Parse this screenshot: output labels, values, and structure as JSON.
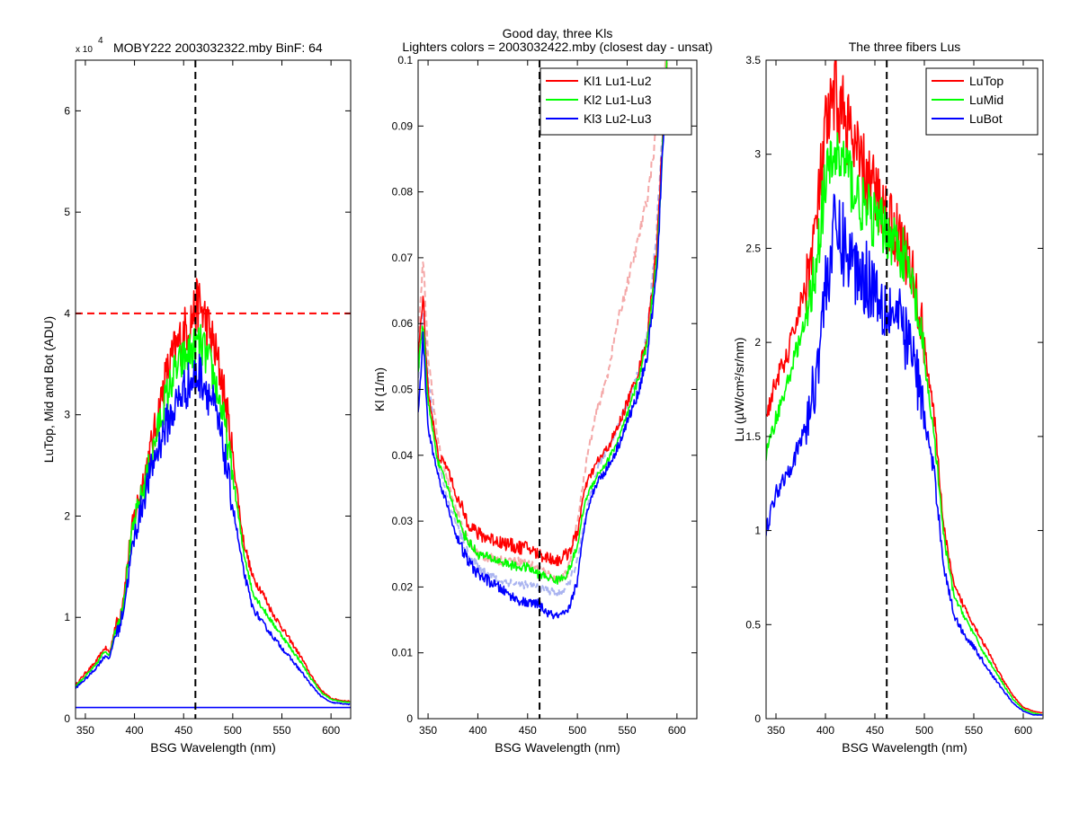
{
  "figure": {
    "background": "#ffffff"
  },
  "chart_data": [
    {
      "type": "line",
      "title": "MOBY222  2003032322.mby BinF: 64",
      "xlabel": "BSG Wavelength (nm)",
      "ylabel": "LuTop, Mid and Bot (ADU)",
      "xlim": [
        340,
        620
      ],
      "ylim": [
        0,
        65000
      ],
      "y_exponent_label": "x 10",
      "y_exponent_power": "4",
      "xticks": [
        350,
        400,
        450,
        500,
        550,
        600
      ],
      "xtick_labels": [
        "350",
        "400",
        "450",
        "500",
        "550",
        "600"
      ],
      "yticks": [
        0,
        10000,
        20000,
        30000,
        40000,
        50000,
        60000
      ],
      "ytick_labels": [
        "0",
        "1",
        "2",
        "3",
        "4",
        "5",
        "6"
      ],
      "grid": false,
      "legend": null,
      "reference_lines": [
        {
          "orientation": "vertical",
          "value": 462,
          "color": "#000000",
          "style": "dashed"
        },
        {
          "orientation": "horizontal",
          "value": 40000,
          "color": "#ff0000",
          "style": "dashed"
        }
      ],
      "series": [
        {
          "color": "#ff0000",
          "noise": 0.07,
          "x": [
            340,
            350,
            360,
            370,
            375,
            380,
            385,
            390,
            395,
            400,
            410,
            420,
            430,
            440,
            450,
            460,
            465,
            470,
            480,
            490,
            500,
            510,
            520,
            530,
            540,
            550,
            560,
            570,
            580,
            590,
            600,
            610,
            620
          ],
          "y": [
            3300,
            4500,
            5500,
            7000,
            6500,
            9000,
            10000,
            13000,
            17000,
            20000,
            24000,
            28000,
            33000,
            36000,
            38000,
            40000,
            41000,
            40000,
            37000,
            33000,
            26000,
            18000,
            14000,
            12500,
            10500,
            9000,
            7500,
            6000,
            4200,
            2800,
            2000,
            1800,
            1700
          ]
        },
        {
          "color": "#00ff00",
          "noise": 0.06,
          "x": [
            340,
            350,
            360,
            370,
            375,
            380,
            385,
            390,
            395,
            400,
            410,
            420,
            430,
            440,
            450,
            460,
            465,
            470,
            480,
            490,
            500,
            510,
            520,
            530,
            540,
            550,
            560,
            570,
            580,
            590,
            600,
            610,
            620
          ],
          "y": [
            3200,
            4200,
            5200,
            6700,
            6300,
            8700,
            9600,
            12500,
            16500,
            19500,
            23000,
            27000,
            31000,
            34000,
            35500,
            36500,
            37000,
            36500,
            34000,
            30000,
            24000,
            17000,
            12500,
            11000,
            9500,
            8200,
            6800,
            5500,
            3900,
            2600,
            1900,
            1700,
            1600
          ]
        },
        {
          "color": "#0000ff",
          "noise": 0.07,
          "x": [
            340,
            350,
            360,
            370,
            375,
            380,
            385,
            390,
            395,
            400,
            410,
            420,
            430,
            440,
            450,
            460,
            465,
            470,
            480,
            490,
            500,
            510,
            520,
            530,
            540,
            550,
            560,
            570,
            580,
            590,
            600,
            610,
            620
          ],
          "y": [
            3000,
            3900,
            4900,
            6200,
            6000,
            8200,
            9000,
            11500,
            15000,
            18000,
            22000,
            25500,
            28500,
            30500,
            32500,
            33500,
            34000,
            33500,
            31000,
            27000,
            21000,
            15000,
            11000,
            9500,
            8200,
            7000,
            5800,
            4600,
            3300,
            2200,
            1600,
            1500,
            1400
          ]
        },
        {
          "color": "#0000ff",
          "noise": 0.0,
          "x": [
            340,
            620
          ],
          "y": [
            1100,
            1100
          ]
        }
      ]
    },
    {
      "type": "line",
      "title": "Good day, three Kls",
      "subtitle": "Lighters colors = 2003032422.mby (closest day - unsat)",
      "xlabel": "BSG Wavelength (nm)",
      "ylabel": "Kl (1/m)",
      "xlim": [
        340,
        620
      ],
      "ylim": [
        0,
        0.1
      ],
      "xticks": [
        350,
        400,
        450,
        500,
        550,
        600
      ],
      "xtick_labels": [
        "350",
        "400",
        "450",
        "500",
        "550",
        "600"
      ],
      "yticks": [
        0,
        0.01,
        0.02,
        0.03,
        0.04,
        0.05,
        0.06,
        0.07,
        0.08,
        0.09,
        0.1
      ],
      "ytick_labels": [
        "0",
        "0.01",
        "0.02",
        "0.03",
        "0.04",
        "0.05",
        "0.06",
        "0.07",
        "0.08",
        "0.09",
        "0.1"
      ],
      "grid": false,
      "legend": {
        "position": "top-right",
        "entries": [
          "Kl1 Lu1-Lu2",
          "Kl2 Lu1-Lu3",
          "Kl3 Lu2-Lu3"
        ],
        "colors": [
          "#ff0000",
          "#00ff00",
          "#0000ff"
        ]
      },
      "reference_lines": [
        {
          "orientation": "vertical",
          "value": 462,
          "color": "#000000",
          "style": "dashed"
        }
      ],
      "series": [
        {
          "color": "#f4a8a8",
          "dashed": true,
          "noise": 0.03,
          "x": [
            340,
            345,
            350,
            360,
            370,
            380,
            390,
            400,
            420,
            440,
            460,
            470,
            480,
            490,
            500,
            510,
            520,
            530,
            540,
            550,
            560,
            570,
            580,
            590
          ],
          "y": [
            0.058,
            0.07,
            0.055,
            0.042,
            0.036,
            0.031,
            0.027,
            0.025,
            0.024,
            0.024,
            0.023,
            0.022,
            0.021,
            0.022,
            0.03,
            0.04,
            0.047,
            0.052,
            0.06,
            0.066,
            0.072,
            0.079,
            0.09,
            0.102
          ]
        },
        {
          "color": "#aab4f0",
          "dashed": true,
          "noise": 0.03,
          "x": [
            340,
            345,
            350,
            360,
            370,
            380,
            390,
            400,
            420,
            440,
            460,
            470,
            480,
            490,
            500,
            510,
            520,
            530,
            540,
            550,
            560,
            570,
            580,
            590
          ],
          "y": [
            0.052,
            0.062,
            0.052,
            0.039,
            0.033,
            0.029,
            0.025,
            0.023,
            0.021,
            0.0205,
            0.02,
            0.0195,
            0.019,
            0.02,
            0.024,
            0.032,
            0.038,
            0.041,
            0.044,
            0.048,
            0.052,
            0.058,
            0.075,
            0.1
          ]
        },
        {
          "color": "#ff0000",
          "dashed": false,
          "noise": 0.04,
          "x": [
            340,
            345,
            350,
            360,
            370,
            380,
            390,
            400,
            420,
            440,
            450,
            460,
            470,
            480,
            490,
            500,
            505,
            510,
            520,
            530,
            540,
            550,
            560,
            570,
            580,
            590
          ],
          "y": [
            0.055,
            0.064,
            0.05,
            0.04,
            0.038,
            0.033,
            0.03,
            0.028,
            0.027,
            0.026,
            0.026,
            0.025,
            0.0245,
            0.024,
            0.025,
            0.028,
            0.033,
            0.036,
            0.039,
            0.041,
            0.044,
            0.048,
            0.052,
            0.058,
            0.072,
            0.1
          ]
        },
        {
          "color": "#00ff00",
          "dashed": false,
          "noise": 0.03,
          "x": [
            340,
            345,
            350,
            360,
            370,
            380,
            390,
            400,
            420,
            440,
            450,
            460,
            470,
            480,
            490,
            500,
            505,
            510,
            520,
            530,
            540,
            550,
            560,
            570,
            580,
            590
          ],
          "y": [
            0.053,
            0.06,
            0.048,
            0.039,
            0.035,
            0.03,
            0.027,
            0.025,
            0.024,
            0.023,
            0.023,
            0.022,
            0.0215,
            0.021,
            0.022,
            0.026,
            0.031,
            0.034,
            0.037,
            0.039,
            0.042,
            0.046,
            0.051,
            0.057,
            0.07,
            0.1
          ]
        },
        {
          "color": "#0000ff",
          "dashed": false,
          "noise": 0.04,
          "x": [
            340,
            345,
            350,
            360,
            370,
            380,
            390,
            400,
            420,
            440,
            450,
            460,
            470,
            480,
            490,
            500,
            505,
            510,
            520,
            530,
            540,
            550,
            560,
            570,
            580,
            590
          ],
          "y": [
            0.046,
            0.058,
            0.044,
            0.037,
            0.032,
            0.027,
            0.024,
            0.022,
            0.02,
            0.018,
            0.0175,
            0.0175,
            0.016,
            0.0155,
            0.016,
            0.021,
            0.027,
            0.032,
            0.036,
            0.038,
            0.041,
            0.045,
            0.049,
            0.055,
            0.068,
            0.1
          ]
        }
      ]
    },
    {
      "type": "line",
      "title": "The three fibers Lus",
      "xlabel": "BSG Wavelength (nm)",
      "ylabel": "Lu (µW/cm²/sr/nm)",
      "xlim": [
        340,
        620
      ],
      "ylim": [
        0,
        3.5
      ],
      "xticks": [
        350,
        400,
        450,
        500,
        550,
        600
      ],
      "xtick_labels": [
        "350",
        "400",
        "450",
        "500",
        "550",
        "600"
      ],
      "yticks": [
        0,
        0.5,
        1,
        1.5,
        2,
        2.5,
        3,
        3.5
      ],
      "ytick_labels": [
        "0",
        "0.5",
        "1",
        "1.5",
        "2",
        "2.5",
        "3",
        "3.5"
      ],
      "grid": false,
      "legend": {
        "position": "top-right",
        "entries": [
          "LuTop",
          "LuMid",
          "LuBot"
        ],
        "colors": [
          "#ff0000",
          "#00ff00",
          "#0000ff"
        ]
      },
      "reference_lines": [
        {
          "orientation": "vertical",
          "value": 462,
          "color": "#000000",
          "style": "dashed"
        }
      ],
      "series": [
        {
          "color": "#ff0000",
          "noise": 0.07,
          "x": [
            340,
            350,
            360,
            370,
            380,
            390,
            400,
            410,
            420,
            430,
            440,
            450,
            460,
            470,
            480,
            490,
            500,
            510,
            520,
            530,
            540,
            550,
            560,
            570,
            580,
            590,
            600,
            610,
            620
          ],
          "y": [
            1.6,
            1.8,
            1.9,
            2.1,
            2.3,
            2.6,
            3.1,
            3.3,
            3.2,
            3.0,
            2.9,
            2.8,
            2.7,
            2.6,
            2.5,
            2.3,
            2.0,
            1.6,
            1.0,
            0.7,
            0.6,
            0.5,
            0.4,
            0.3,
            0.2,
            0.12,
            0.06,
            0.04,
            0.03
          ]
        },
        {
          "color": "#00ff00",
          "noise": 0.06,
          "x": [
            340,
            350,
            360,
            370,
            380,
            390,
            400,
            410,
            420,
            430,
            440,
            450,
            460,
            470,
            480,
            490,
            500,
            510,
            520,
            530,
            540,
            550,
            560,
            570,
            580,
            590,
            600,
            610,
            620
          ],
          "y": [
            1.4,
            1.6,
            1.75,
            1.95,
            2.1,
            2.4,
            2.85,
            3.0,
            2.95,
            2.8,
            2.7,
            2.65,
            2.6,
            2.55,
            2.45,
            2.25,
            1.9,
            1.5,
            0.95,
            0.65,
            0.55,
            0.45,
            0.35,
            0.27,
            0.18,
            0.1,
            0.05,
            0.03,
            0.02
          ]
        },
        {
          "color": "#0000ff",
          "noise": 0.09,
          "x": [
            340,
            350,
            360,
            370,
            380,
            390,
            400,
            410,
            420,
            430,
            440,
            450,
            460,
            470,
            480,
            490,
            500,
            510,
            520,
            530,
            540,
            550,
            560,
            570,
            580,
            590,
            600,
            610,
            620
          ],
          "y": [
            1.0,
            1.2,
            1.3,
            1.4,
            1.55,
            1.8,
            2.3,
            2.6,
            2.5,
            2.4,
            2.35,
            2.3,
            2.2,
            2.15,
            2.05,
            1.9,
            1.6,
            1.3,
            0.8,
            0.55,
            0.45,
            0.38,
            0.3,
            0.22,
            0.15,
            0.08,
            0.04,
            0.02,
            0.02
          ]
        }
      ]
    }
  ]
}
